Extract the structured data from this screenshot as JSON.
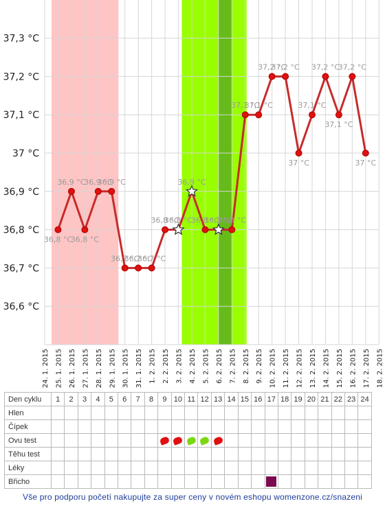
{
  "chart_data": {
    "type": "line",
    "ylim": [
      36.5,
      37.4
    ],
    "y_ticks": [
      {
        "value": 37.3,
        "label": "37,3 °C"
      },
      {
        "value": 37.2,
        "label": "37,2 °C"
      },
      {
        "value": 37.1,
        "label": "37,1 °C"
      },
      {
        "value": 37.0,
        "label": "37 °C"
      },
      {
        "value": 36.9,
        "label": "36,9 °C"
      },
      {
        "value": 36.8,
        "label": "36,8 °C"
      },
      {
        "value": 36.7,
        "label": "36,7 °C"
      },
      {
        "value": 36.6,
        "label": "36,6 °C"
      }
    ],
    "x_tick_labels": [
      "24. 1. 2015",
      "25. 1. 2015",
      "26. 1. 2015",
      "27. 1. 2015",
      "28. 1. 2015",
      "29. 1. 2015",
      "30. 1. 2015",
      "31. 1. 2015",
      "1. 2. 2015",
      "2. 2. 2015",
      "3. 2. 2015",
      "4. 2. 2015",
      "5. 2. 2015",
      "6. 2. 2015",
      "7. 2. 2015",
      "8. 2. 2015",
      "9. 2. 2015",
      "10. 2. 2015",
      "11. 2. 2015",
      "12. 2. 2015",
      "13. 2. 2015",
      "14. 2. 2015",
      "15. 2. 2015",
      "16. 2. 2015",
      "17. 2. 2015",
      "18. 2. 2015"
    ],
    "series": [
      {
        "color": "#c62b2b",
        "points": [
          {
            "x": "25. 1. 2015",
            "y": 36.8,
            "label": "36,8 °C",
            "marker": "dot"
          },
          {
            "x": "26. 1. 2015",
            "y": 36.9,
            "label": "36,9 °C",
            "marker": "dot"
          },
          {
            "x": "27. 1. 2015",
            "y": 36.8,
            "label": "36,8 °C",
            "marker": "dot"
          },
          {
            "x": "28. 1. 2015",
            "y": 36.9,
            "label": "36,9 °C",
            "marker": "dot"
          },
          {
            "x": "29. 1. 2015",
            "y": 36.9,
            "label": "36,9 °C",
            "marker": "dot"
          },
          {
            "x": "30. 1. 2015",
            "y": 36.7,
            "label": "36,7 °C",
            "marker": "dot"
          },
          {
            "x": "31. 1. 2015",
            "y": 36.7,
            "label": "36,7 °C",
            "marker": "dot"
          },
          {
            "x": "1. 2. 2015",
            "y": 36.7,
            "label": "36,7 °C",
            "marker": "dot"
          },
          {
            "x": "2. 2. 2015",
            "y": 36.8,
            "label": "36,8 °C",
            "marker": "dot"
          },
          {
            "x": "3. 2. 2015",
            "y": 36.8,
            "label": "36,8 °C",
            "marker": "star"
          },
          {
            "x": "4. 2. 2015",
            "y": 36.9,
            "label": "36,9 °C",
            "marker": "star"
          },
          {
            "x": "5. 2. 2015",
            "y": 36.8,
            "label": "36,8 °C",
            "marker": "dot"
          },
          {
            "x": "6. 2. 2015",
            "y": 36.8,
            "label": "36,8 °C",
            "marker": "star"
          },
          {
            "x": "7. 2. 2015",
            "y": 36.8,
            "label": "36,8 °C",
            "marker": "dot"
          },
          {
            "x": "8. 2. 2015",
            "y": 37.1,
            "label": "37,1 °C",
            "marker": "dot"
          },
          {
            "x": "9. 2. 2015",
            "y": 37.1,
            "label": "37,1 °C",
            "marker": "dot"
          },
          {
            "x": "10. 2. 2015",
            "y": 37.2,
            "label": "37,2 °C",
            "marker": "dot"
          },
          {
            "x": "11. 2. 2015",
            "y": 37.2,
            "label": "37,2 °C",
            "marker": "dot"
          },
          {
            "x": "12. 2. 2015",
            "y": 37.0,
            "label": "37 °C",
            "marker": "dot"
          },
          {
            "x": "13. 2. 2015",
            "y": 37.1,
            "label": "37,1 °C",
            "marker": "dot"
          },
          {
            "x": "14. 2. 2015",
            "y": 37.2,
            "label": "37,2 °C",
            "marker": "dot"
          },
          {
            "x": "15. 2. 2015",
            "y": 37.1,
            "label": "37,1 °C",
            "marker": "dot"
          },
          {
            "x": "16. 2. 2015",
            "y": 37.2,
            "label": "37,2 °C",
            "marker": "dot"
          },
          {
            "x": "17. 2. 2015",
            "y": 37.0,
            "label": "37 °C",
            "marker": "dot"
          }
        ]
      }
    ],
    "bands": [
      {
        "from": "24. 1. 2015",
        "to": "29. 1. 2015",
        "color": "#ffc4c4"
      },
      {
        "from": "3. 2. 2015",
        "to": "8. 2. 2015",
        "color": "#99ff00"
      },
      {
        "from": "6. 2. 2015",
        "to": "7. 2. 2015",
        "color": "#66bb1a"
      }
    ],
    "grid": true
  },
  "table": {
    "rows": [
      {
        "label": "Den cyklu",
        "cells": [
          "1",
          "2",
          "3",
          "4",
          "5",
          "6",
          "7",
          "8",
          "9",
          "10",
          "11",
          "12",
          "13",
          "14",
          "15",
          "16",
          "17",
          "18",
          "19",
          "20",
          "21",
          "22",
          "23",
          "24"
        ]
      },
      {
        "label": "Hlen",
        "cells": []
      },
      {
        "label": "Čípek",
        "cells": []
      },
      {
        "label": "Ovu test",
        "cells": []
      },
      {
        "label": "Těhu test",
        "cells": []
      },
      {
        "label": "Léky",
        "cells": []
      },
      {
        "label": "Břicho",
        "cells": []
      }
    ],
    "ovu_test": [
      {
        "day": 9,
        "result": "positive",
        "color": "#e21010"
      },
      {
        "day": 10,
        "result": "positive",
        "color": "#e21010"
      },
      {
        "day": 11,
        "result": "negative",
        "color": "#7dd813"
      },
      {
        "day": 12,
        "result": "negative",
        "color": "#7dd813"
      },
      {
        "day": 13,
        "result": "positive",
        "color": "#e21010"
      }
    ],
    "bricho": [
      {
        "day": 17,
        "color": "#7b0a4f"
      }
    ]
  },
  "footer": {
    "text": "Vše pro podporu početí nakupujte za super ceny v novém eshopu womenzone.cz/snazeni"
  }
}
